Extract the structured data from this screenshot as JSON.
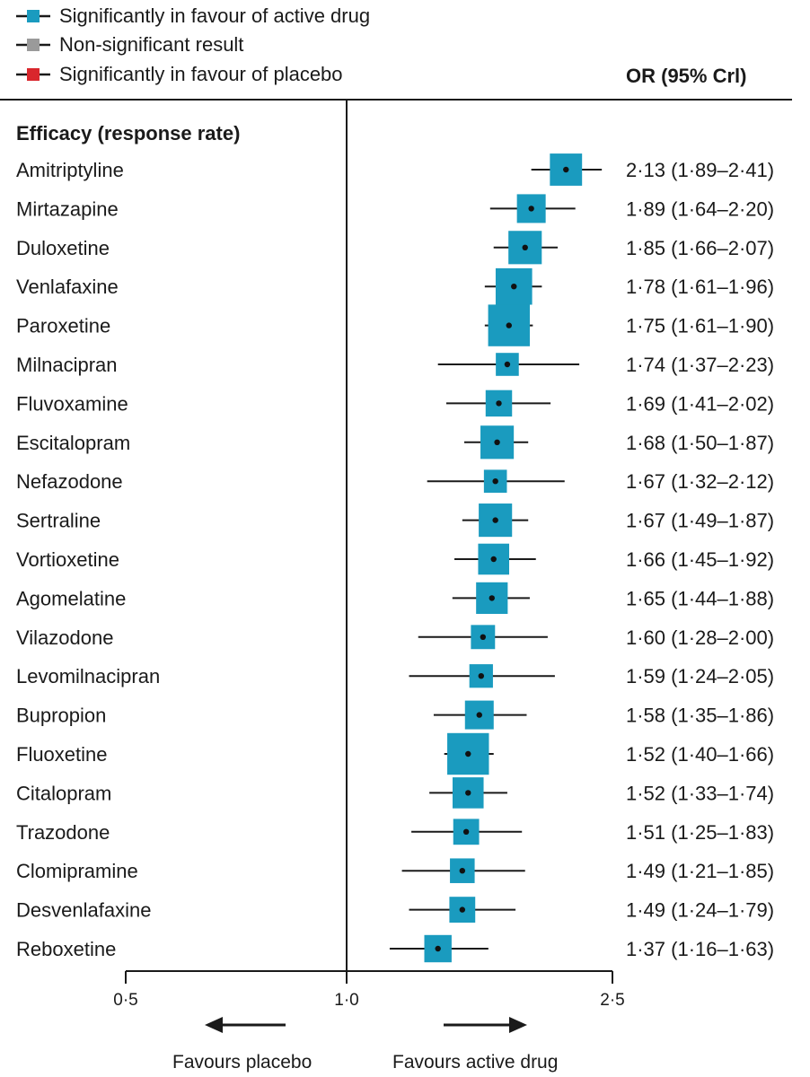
{
  "colors": {
    "significant_active": "#1a9bbf",
    "non_significant": "#9a9a9a",
    "significant_placebo": "#d9262c",
    "line": "#1a1a1a"
  },
  "legend": [
    {
      "label": "Significantly in favour of active drug",
      "color": "#1a9bbf"
    },
    {
      "label": "Non-significant result",
      "color": "#9a9a9a"
    },
    {
      "label": "Significantly in favour of placebo",
      "color": "#d9262c"
    }
  ],
  "chart_data": {
    "type": "forest",
    "section_title": "Efficacy (response rate)",
    "column_header": "OR (95% Crl)",
    "x_scale": "log",
    "xlim": [
      0.5,
      2.5
    ],
    "reference_line": 1.0,
    "ticks": [
      {
        "value": 0.5,
        "label": "0·5"
      },
      {
        "value": 1.0,
        "label": "1·0"
      },
      {
        "value": 2.5,
        "label": "2·5"
      }
    ],
    "favours_left": "Favours placebo",
    "favours_right": "Favours active drug",
    "rows": [
      {
        "drug": "Amitriptyline",
        "or": 2.13,
        "lo": 1.89,
        "hi": 2.41,
        "weight": 0.62,
        "label": "2·13 (1·89–2·41)"
      },
      {
        "drug": "Mirtazapine",
        "or": 1.89,
        "lo": 1.64,
        "hi": 2.2,
        "weight": 0.5,
        "label": "1·89 (1·64–2·20)"
      },
      {
        "drug": "Duloxetine",
        "or": 1.85,
        "lo": 1.66,
        "hi": 2.07,
        "weight": 0.66,
        "label": "1·85 (1·66–2·07)"
      },
      {
        "drug": "Venlafaxine",
        "or": 1.78,
        "lo": 1.61,
        "hi": 1.96,
        "weight": 0.77,
        "label": "1·78 (1·61–1·96)"
      },
      {
        "drug": "Paroxetine",
        "or": 1.75,
        "lo": 1.61,
        "hi": 1.9,
        "weight": 0.95,
        "label": "1·75 (1·61–1·90)"
      },
      {
        "drug": "Milnacipran",
        "or": 1.74,
        "lo": 1.37,
        "hi": 2.23,
        "weight": 0.3,
        "label": "1·74 (1·37–2·23)"
      },
      {
        "drug": "Fluvoxamine",
        "or": 1.69,
        "lo": 1.41,
        "hi": 2.02,
        "weight": 0.42,
        "label": "1·69 (1·41–2·02)"
      },
      {
        "drug": "Escitalopram",
        "or": 1.68,
        "lo": 1.5,
        "hi": 1.87,
        "weight": 0.66,
        "label": "1·68 (1·50–1·87)"
      },
      {
        "drug": "Nefazodone",
        "or": 1.67,
        "lo": 1.32,
        "hi": 2.12,
        "weight": 0.3,
        "label": "1·67 (1·32–2·12)"
      },
      {
        "drug": "Sertraline",
        "or": 1.67,
        "lo": 1.49,
        "hi": 1.87,
        "weight": 0.66,
        "label": "1·67 (1·49–1·87)"
      },
      {
        "drug": "Vortioxetine",
        "or": 1.66,
        "lo": 1.45,
        "hi": 1.92,
        "weight": 0.58,
        "label": "1·66 (1·45–1·92)"
      },
      {
        "drug": "Agomelatine",
        "or": 1.65,
        "lo": 1.44,
        "hi": 1.88,
        "weight": 0.6,
        "label": "1·65 (1·44–1·88)"
      },
      {
        "drug": "Vilazodone",
        "or": 1.6,
        "lo": 1.28,
        "hi": 2.0,
        "weight": 0.34,
        "label": "1·60 (1·28–2·00)"
      },
      {
        "drug": "Levomilnacipran",
        "or": 1.59,
        "lo": 1.24,
        "hi": 2.05,
        "weight": 0.32,
        "label": "1·59 (1·24–2·05)"
      },
      {
        "drug": "Bupropion",
        "or": 1.58,
        "lo": 1.35,
        "hi": 1.86,
        "weight": 0.5,
        "label": "1·58 (1·35–1·86)"
      },
      {
        "drug": "Fluoxetine",
        "or": 1.52,
        "lo": 1.4,
        "hi": 1.66,
        "weight": 0.95,
        "label": "1·52 (1·40–1·66)"
      },
      {
        "drug": "Citalopram",
        "or": 1.52,
        "lo": 1.33,
        "hi": 1.74,
        "weight": 0.58,
        "label": "1·52 (1·33–1·74)"
      },
      {
        "drug": "Trazodone",
        "or": 1.51,
        "lo": 1.25,
        "hi": 1.83,
        "weight": 0.4,
        "label": "1·51 (1·25–1·83)"
      },
      {
        "drug": "Clomipramine",
        "or": 1.49,
        "lo": 1.21,
        "hi": 1.85,
        "weight": 0.36,
        "label": "1·49 (1·21–1·85)"
      },
      {
        "drug": "Desvenlafaxine",
        "or": 1.49,
        "lo": 1.24,
        "hi": 1.79,
        "weight": 0.4,
        "label": "1·49 (1·24–1·79)"
      },
      {
        "drug": "Reboxetine",
        "or": 1.37,
        "lo": 1.16,
        "hi": 1.63,
        "weight": 0.45,
        "label": "1·37 (1·16–1·63)"
      }
    ]
  }
}
